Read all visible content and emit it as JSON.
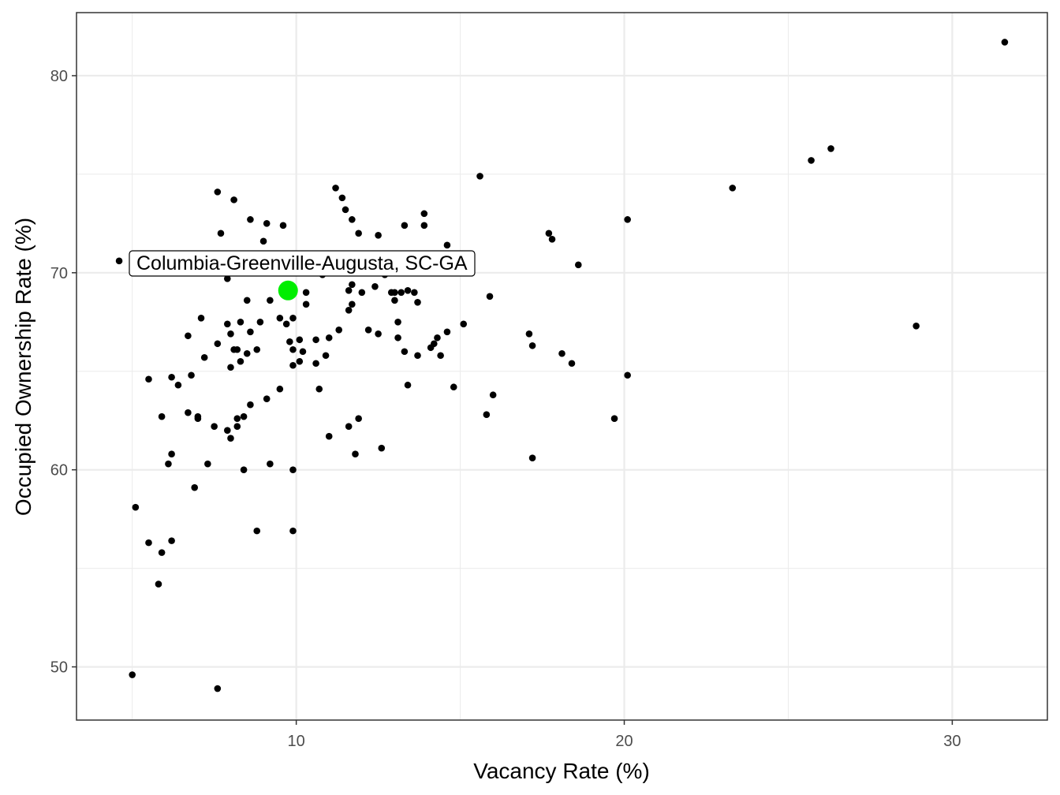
{
  "chart_data": {
    "type": "scatter",
    "xlabel": "Vacancy Rate (%)",
    "ylabel": "Occupied Ownership Rate (%)",
    "xlim": [
      3.3,
      32.9
    ],
    "ylim": [
      47.3,
      83.2
    ],
    "x_ticks": [
      10,
      20,
      30
    ],
    "y_ticks": [
      50,
      60,
      70,
      80
    ],
    "grid": true,
    "points": [
      {
        "x": 31.6,
        "y": 81.7
      },
      {
        "x": 26.3,
        "y": 76.3
      },
      {
        "x": 25.7,
        "y": 75.7
      },
      {
        "x": 23.3,
        "y": 74.3
      },
      {
        "x": 28.9,
        "y": 67.3
      },
      {
        "x": 15.6,
        "y": 74.9
      },
      {
        "x": 20.1,
        "y": 72.7
      },
      {
        "x": 17.7,
        "y": 72.0
      },
      {
        "x": 17.8,
        "y": 71.7
      },
      {
        "x": 18.6,
        "y": 70.4
      },
      {
        "x": 15.9,
        "y": 68.8
      },
      {
        "x": 17.1,
        "y": 66.9
      },
      {
        "x": 17.2,
        "y": 66.3
      },
      {
        "x": 18.1,
        "y": 65.9
      },
      {
        "x": 18.4,
        "y": 65.4
      },
      {
        "x": 20.1,
        "y": 64.8
      },
      {
        "x": 19.7,
        "y": 62.6
      },
      {
        "x": 16.0,
        "y": 63.8
      },
      {
        "x": 15.8,
        "y": 62.8
      },
      {
        "x": 17.2,
        "y": 60.6
      },
      {
        "x": 4.6,
        "y": 70.6
      },
      {
        "x": 5.1,
        "y": 58.1
      },
      {
        "x": 5.0,
        "y": 49.6
      },
      {
        "x": 5.5,
        "y": 56.3
      },
      {
        "x": 5.9,
        "y": 55.8
      },
      {
        "x": 5.8,
        "y": 54.2
      },
      {
        "x": 6.2,
        "y": 56.4
      },
      {
        "x": 5.5,
        "y": 64.6
      },
      {
        "x": 5.9,
        "y": 62.7
      },
      {
        "x": 6.1,
        "y": 60.3
      },
      {
        "x": 6.2,
        "y": 60.8
      },
      {
        "x": 6.4,
        "y": 64.3
      },
      {
        "x": 6.2,
        "y": 64.7
      },
      {
        "x": 6.7,
        "y": 62.9
      },
      {
        "x": 6.8,
        "y": 64.8
      },
      {
        "x": 6.7,
        "y": 66.8
      },
      {
        "x": 6.9,
        "y": 59.1
      },
      {
        "x": 7.0,
        "y": 62.6
      },
      {
        "x": 7.0,
        "y": 62.7
      },
      {
        "x": 7.1,
        "y": 67.7
      },
      {
        "x": 7.2,
        "y": 65.7
      },
      {
        "x": 7.3,
        "y": 60.3
      },
      {
        "x": 7.5,
        "y": 62.2
      },
      {
        "x": 7.6,
        "y": 48.9
      },
      {
        "x": 7.6,
        "y": 66.4
      },
      {
        "x": 7.6,
        "y": 74.1
      },
      {
        "x": 7.7,
        "y": 72.0
      },
      {
        "x": 7.9,
        "y": 62.0
      },
      {
        "x": 7.9,
        "y": 67.4
      },
      {
        "x": 7.9,
        "y": 69.7
      },
      {
        "x": 8.0,
        "y": 61.6
      },
      {
        "x": 8.0,
        "y": 65.2
      },
      {
        "x": 8.0,
        "y": 66.9
      },
      {
        "x": 8.1,
        "y": 73.7
      },
      {
        "x": 8.2,
        "y": 62.6
      },
      {
        "x": 8.1,
        "y": 66.1
      },
      {
        "x": 8.2,
        "y": 66.1
      },
      {
        "x": 8.2,
        "y": 62.2
      },
      {
        "x": 8.3,
        "y": 65.5
      },
      {
        "x": 8.3,
        "y": 67.5
      },
      {
        "x": 8.4,
        "y": 60.0
      },
      {
        "x": 8.4,
        "y": 62.7
      },
      {
        "x": 8.5,
        "y": 68.6
      },
      {
        "x": 8.5,
        "y": 65.9
      },
      {
        "x": 8.6,
        "y": 67.0
      },
      {
        "x": 8.6,
        "y": 63.3
      },
      {
        "x": 8.6,
        "y": 72.7
      },
      {
        "x": 8.8,
        "y": 56.9
      },
      {
        "x": 8.8,
        "y": 66.1
      },
      {
        "x": 8.9,
        "y": 67.5
      },
      {
        "x": 9.0,
        "y": 71.6
      },
      {
        "x": 9.1,
        "y": 72.5
      },
      {
        "x": 9.1,
        "y": 63.6
      },
      {
        "x": 9.2,
        "y": 68.6
      },
      {
        "x": 9.2,
        "y": 60.3
      },
      {
        "x": 9.5,
        "y": 64.1
      },
      {
        "x": 9.5,
        "y": 67.7
      },
      {
        "x": 9.6,
        "y": 72.4
      },
      {
        "x": 9.7,
        "y": 67.4
      },
      {
        "x": 9.8,
        "y": 66.5
      },
      {
        "x": 9.9,
        "y": 65.3
      },
      {
        "x": 9.9,
        "y": 56.9
      },
      {
        "x": 9.9,
        "y": 60.0
      },
      {
        "x": 9.9,
        "y": 67.7
      },
      {
        "x": 9.9,
        "y": 66.1
      },
      {
        "x": 10.1,
        "y": 66.6
      },
      {
        "x": 10.1,
        "y": 65.5
      },
      {
        "x": 10.2,
        "y": 66.0
      },
      {
        "x": 10.3,
        "y": 68.4
      },
      {
        "x": 10.3,
        "y": 69.0
      },
      {
        "x": 10.6,
        "y": 66.6
      },
      {
        "x": 10.6,
        "y": 65.4
      },
      {
        "x": 10.7,
        "y": 64.1
      },
      {
        "x": 10.8,
        "y": 69.9
      },
      {
        "x": 10.9,
        "y": 65.8
      },
      {
        "x": 11.0,
        "y": 66.7
      },
      {
        "x": 11.0,
        "y": 61.7
      },
      {
        "x": 11.2,
        "y": 74.3
      },
      {
        "x": 11.3,
        "y": 67.1
      },
      {
        "x": 11.4,
        "y": 73.8
      },
      {
        "x": 11.5,
        "y": 73.2
      },
      {
        "x": 11.6,
        "y": 68.1
      },
      {
        "x": 11.6,
        "y": 69.1
      },
      {
        "x": 11.6,
        "y": 62.2
      },
      {
        "x": 11.7,
        "y": 69.4
      },
      {
        "x": 11.7,
        "y": 68.4
      },
      {
        "x": 11.7,
        "y": 72.7
      },
      {
        "x": 11.8,
        "y": 60.8
      },
      {
        "x": 11.9,
        "y": 72.0
      },
      {
        "x": 11.9,
        "y": 62.6
      },
      {
        "x": 12.0,
        "y": 69.0
      },
      {
        "x": 12.2,
        "y": 67.1
      },
      {
        "x": 12.4,
        "y": 69.3
      },
      {
        "x": 12.5,
        "y": 66.9
      },
      {
        "x": 12.5,
        "y": 71.9
      },
      {
        "x": 12.6,
        "y": 61.1
      },
      {
        "x": 12.7,
        "y": 69.9
      },
      {
        "x": 12.9,
        "y": 69.0
      },
      {
        "x": 13.0,
        "y": 68.6
      },
      {
        "x": 13.0,
        "y": 69.0
      },
      {
        "x": 13.1,
        "y": 66.7
      },
      {
        "x": 13.1,
        "y": 67.5
      },
      {
        "x": 13.2,
        "y": 69.0
      },
      {
        "x": 13.3,
        "y": 72.4
      },
      {
        "x": 13.3,
        "y": 66.0
      },
      {
        "x": 13.4,
        "y": 64.3
      },
      {
        "x": 13.4,
        "y": 69.1
      },
      {
        "x": 13.6,
        "y": 69.0
      },
      {
        "x": 13.7,
        "y": 68.5
      },
      {
        "x": 13.7,
        "y": 65.8
      },
      {
        "x": 13.9,
        "y": 73.0
      },
      {
        "x": 13.9,
        "y": 72.4
      },
      {
        "x": 14.1,
        "y": 66.2
      },
      {
        "x": 14.2,
        "y": 66.4
      },
      {
        "x": 14.3,
        "y": 66.7
      },
      {
        "x": 14.4,
        "y": 65.8
      },
      {
        "x": 14.6,
        "y": 67.0
      },
      {
        "x": 14.6,
        "y": 71.4
      },
      {
        "x": 14.8,
        "y": 64.2
      },
      {
        "x": 15.1,
        "y": 67.4
      }
    ],
    "highlight": {
      "label": "Columbia-Greenville-Augusta, SC-GA",
      "x": 9.75,
      "y": 69.1,
      "color": "#00ee00"
    },
    "point_color": "#000000",
    "grid_color": "#ebebeb",
    "panel_border_color": "#333333"
  }
}
